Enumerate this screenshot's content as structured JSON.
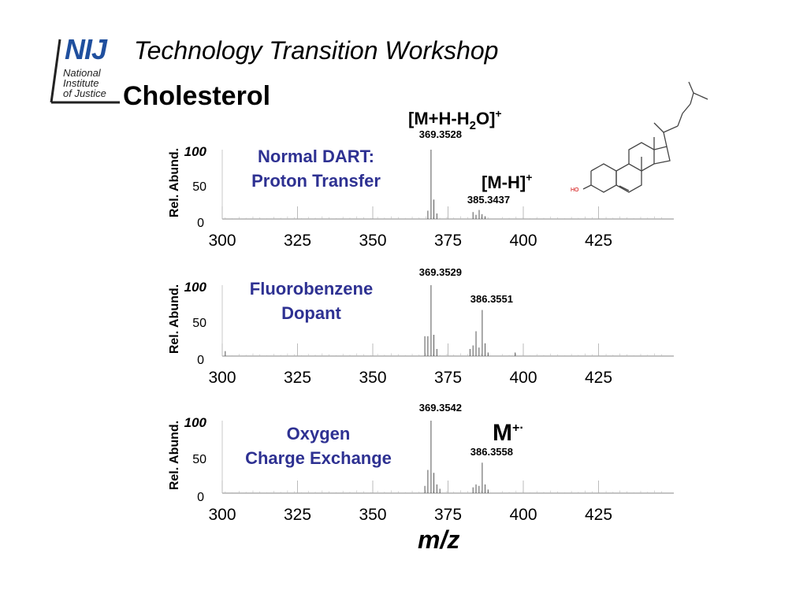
{
  "header": {
    "logo_text": "NIJ",
    "logo_line1": "National",
    "logo_line2": "Institute",
    "logo_line3": "of Justice",
    "workshop": "Technology Transition Workshop",
    "title": "Cholesterol"
  },
  "structure": {
    "hydroxyl_label": "HO"
  },
  "colors": {
    "method_text": "#2e3192",
    "spectrum": "#555555",
    "structure": "#444444",
    "hydroxyl": "#d00000"
  },
  "xlabel": "m/z",
  "chart_data": [
    {
      "type": "bar",
      "method_line1": "Normal DART:",
      "method_line2": "Proton Transfer",
      "ylabel": "Rel. Abund.",
      "yticks": [
        "100",
        "50",
        "0"
      ],
      "xticks": [
        "300",
        "325",
        "350",
        "375",
        "400",
        "425"
      ],
      "xlim": [
        300,
        450
      ],
      "ylim": [
        0,
        100
      ],
      "peaks": [
        [
          368.3,
          12
        ],
        [
          369.35,
          100
        ],
        [
          370.3,
          28
        ],
        [
          371.3,
          8
        ],
        [
          383.3,
          10
        ],
        [
          384.3,
          6
        ],
        [
          385.34,
          13
        ],
        [
          386.3,
          7
        ],
        [
          387.3,
          4
        ]
      ],
      "annotations": [
        {
          "text": "369.3528",
          "mz": 369.35
        },
        {
          "text": "385.3437",
          "mz": 385.34
        }
      ],
      "ion_label_1": {
        "main": "[M+H-H",
        "sub": "2",
        "tail": "O]",
        "sup": "+"
      },
      "ion_label_2": {
        "main": "[M-H]",
        "sup": "+"
      }
    },
    {
      "type": "bar",
      "method_line1": "Fluorobenzene",
      "method_line2": "Dopant",
      "ylabel": "Rel. Abund.",
      "yticks": [
        "100",
        "50",
        "0"
      ],
      "xticks": [
        "300",
        "325",
        "350",
        "375",
        "400",
        "425"
      ],
      "xlim": [
        300,
        450
      ],
      "ylim": [
        0,
        100
      ],
      "peaks": [
        [
          301,
          7
        ],
        [
          367.3,
          28
        ],
        [
          368.3,
          28
        ],
        [
          369.35,
          100
        ],
        [
          370.3,
          30
        ],
        [
          371.3,
          10
        ],
        [
          382.3,
          10
        ],
        [
          383.3,
          15
        ],
        [
          384.3,
          35
        ],
        [
          385.3,
          12
        ],
        [
          386.36,
          65
        ],
        [
          387.3,
          18
        ],
        [
          388.3,
          5
        ],
        [
          397.3,
          5
        ]
      ],
      "annotations": [
        {
          "text": "369.3529",
          "mz": 369.35
        },
        {
          "text": "386.3551",
          "mz": 386.36
        }
      ]
    },
    {
      "type": "bar",
      "method_line1": "Oxygen",
      "method_line2": "Charge Exchange",
      "ylabel": "Rel. Abund.",
      "yticks": [
        "100",
        "50",
        "0"
      ],
      "xticks": [
        "300",
        "325",
        "350",
        "375",
        "400",
        "425"
      ],
      "xlim": [
        300,
        450
      ],
      "ylim": [
        0,
        100
      ],
      "peaks": [
        [
          367.3,
          10
        ],
        [
          368.3,
          32
        ],
        [
          369.35,
          100
        ],
        [
          370.3,
          28
        ],
        [
          371.3,
          12
        ],
        [
          372.3,
          6
        ],
        [
          383.3,
          8
        ],
        [
          384.3,
          12
        ],
        [
          385.3,
          10
        ],
        [
          386.36,
          42
        ],
        [
          387.3,
          12
        ],
        [
          388.3,
          5
        ]
      ],
      "annotations": [
        {
          "text": "369.3542",
          "mz": 369.35
        },
        {
          "text": "386.3558",
          "mz": 386.36
        }
      ],
      "ion_label": {
        "main": "M",
        "sup": "+·"
      }
    }
  ]
}
